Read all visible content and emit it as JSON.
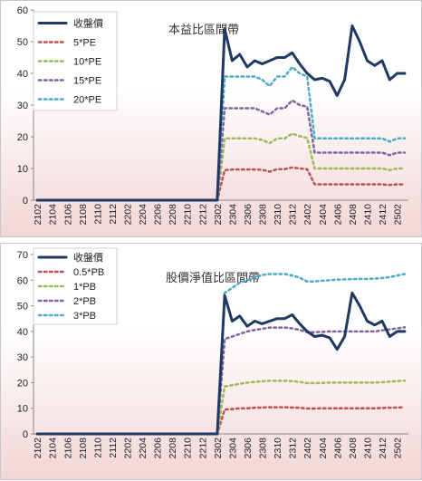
{
  "chart_data": [
    {
      "type": "line",
      "title": "本益比區間帶",
      "xlabel": "",
      "ylabel": "",
      "ylim": [
        0,
        60
      ],
      "yticks": [
        0,
        10,
        20,
        30,
        40,
        50,
        60
      ],
      "grid": false,
      "legend_position": "top-left",
      "x": [
        "2102",
        "2103",
        "2104",
        "2105",
        "2106",
        "2107",
        "2108",
        "2109",
        "2110",
        "2111",
        "2112",
        "2201",
        "2202",
        "2203",
        "2204",
        "2205",
        "2206",
        "2207",
        "2208",
        "2209",
        "2210",
        "2211",
        "2212",
        "2301",
        "2302",
        "2303",
        "2304",
        "2305",
        "2306",
        "2307",
        "2308",
        "2309",
        "2310",
        "2311",
        "2312",
        "2401",
        "2402",
        "2403",
        "2404",
        "2405",
        "2406",
        "2407",
        "2408",
        "2409",
        "2410",
        "2411",
        "2412",
        "2501",
        "2502",
        "2503"
      ],
      "xtick_labels": [
        "2102",
        "2104",
        "2106",
        "2108",
        "2110",
        "2112",
        "2202",
        "2204",
        "2206",
        "2208",
        "2210",
        "2212",
        "2302",
        "2304",
        "2306",
        "2308",
        "2310",
        "2312",
        "2402",
        "2404",
        "2406",
        "2408",
        "2410",
        "2412",
        "2502"
      ],
      "series": [
        {
          "name": "收盤價",
          "color": "#1f3864",
          "style": "solid",
          "width": 3,
          "values": [
            0,
            0,
            0,
            0,
            0,
            0,
            0,
            0,
            0,
            0,
            0,
            0,
            0,
            0,
            0,
            0,
            0,
            0,
            0,
            0,
            0,
            0,
            0,
            0,
            0,
            54,
            44,
            46,
            42,
            44,
            43,
            44,
            45,
            45,
            46.5,
            43,
            40,
            38,
            38.5,
            37.5,
            33,
            38,
            55,
            50,
            44,
            42.5,
            44,
            38,
            40,
            40
          ]
        },
        {
          "name": "5*PE",
          "color": "#c0504d",
          "style": "dot",
          "width": 2.5,
          "values": [
            0,
            0,
            0,
            0,
            0,
            0,
            0,
            0,
            0,
            0,
            0,
            0,
            0,
            0,
            0,
            0,
            0,
            0,
            0,
            0,
            0,
            0,
            0,
            0,
            0,
            9.5,
            9.7,
            9.7,
            9.7,
            9.7,
            9.6,
            9,
            9.8,
            9.8,
            10.3,
            10,
            9.8,
            5,
            5,
            5,
            5,
            5,
            5,
            5,
            5,
            5,
            5,
            4.8,
            5,
            5
          ]
        },
        {
          "name": "10*PE",
          "color": "#9bbb59",
          "style": "dot",
          "width": 2.5,
          "values": [
            0,
            0,
            0,
            0,
            0,
            0,
            0,
            0,
            0,
            0,
            0,
            0,
            0,
            0,
            0,
            0,
            0,
            0,
            0,
            0,
            0,
            0,
            0,
            0,
            0,
            19.5,
            19.5,
            19.5,
            19.5,
            19.5,
            19,
            18,
            19.5,
            19.5,
            21,
            20.2,
            19.6,
            10,
            10,
            10,
            10,
            10,
            10,
            10,
            10,
            10,
            10,
            9.5,
            10,
            10
          ]
        },
        {
          "name": "15*PE",
          "color": "#8064a2",
          "style": "dot",
          "width": 2.5,
          "values": [
            0,
            0,
            0,
            0,
            0,
            0,
            0,
            0,
            0,
            0,
            0,
            0,
            0,
            0,
            0,
            0,
            0,
            0,
            0,
            0,
            0,
            0,
            0,
            0,
            0,
            29,
            29,
            29,
            29,
            29,
            28,
            27,
            29,
            29,
            31.5,
            30,
            29.5,
            15,
            15,
            15,
            15,
            15,
            15,
            15,
            15,
            15,
            15,
            14.2,
            15,
            15
          ]
        },
        {
          "name": "20*PE",
          "color": "#4bacc6",
          "style": "dot",
          "width": 2.5,
          "values": [
            0,
            0,
            0,
            0,
            0,
            0,
            0,
            0,
            0,
            0,
            0,
            0,
            0,
            0,
            0,
            0,
            0,
            0,
            0,
            0,
            0,
            0,
            0,
            0,
            0,
            39,
            39,
            39,
            39,
            39,
            38,
            36,
            39,
            39,
            42,
            40,
            39,
            19.5,
            19.5,
            19.5,
            19.5,
            19.5,
            19.5,
            19.5,
            19.5,
            19.5,
            19.5,
            18.5,
            19.5,
            19.5
          ]
        }
      ]
    },
    {
      "type": "line",
      "title": "股價淨值比區間帶",
      "xlabel": "",
      "ylabel": "",
      "ylim": [
        0,
        70
      ],
      "yticks": [
        0,
        10,
        20,
        30,
        40,
        50,
        60,
        70
      ],
      "grid": false,
      "legend_position": "top-left",
      "x": [
        "2102",
        "2103",
        "2104",
        "2105",
        "2106",
        "2107",
        "2108",
        "2109",
        "2110",
        "2111",
        "2112",
        "2201",
        "2202",
        "2203",
        "2204",
        "2205",
        "2206",
        "2207",
        "2208",
        "2209",
        "2210",
        "2211",
        "2212",
        "2301",
        "2302",
        "2303",
        "2304",
        "2305",
        "2306",
        "2307",
        "2308",
        "2309",
        "2310",
        "2311",
        "2312",
        "2401",
        "2402",
        "2403",
        "2404",
        "2405",
        "2406",
        "2407",
        "2408",
        "2409",
        "2410",
        "2411",
        "2412",
        "2501",
        "2502",
        "2503"
      ],
      "xtick_labels": [
        "2102",
        "2104",
        "2106",
        "2108",
        "2110",
        "2112",
        "2202",
        "2204",
        "2206",
        "2208",
        "2210",
        "2212",
        "2302",
        "2304",
        "2306",
        "2308",
        "2310",
        "2312",
        "2402",
        "2404",
        "2406",
        "2408",
        "2410",
        "2412",
        "2502"
      ],
      "series": [
        {
          "name": "收盤價",
          "color": "#1f3864",
          "style": "solid",
          "width": 3,
          "values": [
            0,
            0,
            0,
            0,
            0,
            0,
            0,
            0,
            0,
            0,
            0,
            0,
            0,
            0,
            0,
            0,
            0,
            0,
            0,
            0,
            0,
            0,
            0,
            0,
            0,
            54,
            44,
            46,
            42,
            44,
            43,
            44,
            45,
            45,
            46.5,
            43,
            40,
            38,
            38.5,
            37.5,
            33,
            38,
            55,
            50,
            44,
            42.5,
            44,
            38,
            40,
            40
          ]
        },
        {
          "name": "0.5*PB",
          "color": "#c0504d",
          "style": "dot",
          "width": 2.5,
          "values": [
            0,
            0,
            0,
            0,
            0,
            0,
            0,
            0,
            0,
            0,
            0,
            0,
            0,
            0,
            0,
            0,
            0,
            0,
            0,
            0,
            0,
            0,
            0,
            0,
            0,
            9.5,
            9.7,
            10,
            10,
            10.2,
            10.3,
            10.4,
            10.4,
            10.4,
            10.3,
            10.2,
            9.9,
            9.9,
            10,
            10,
            10,
            10,
            10,
            10,
            10,
            10,
            10.1,
            10.2,
            10.3,
            10.4
          ]
        },
        {
          "name": "1*PB",
          "color": "#9bbb59",
          "style": "dot",
          "width": 2.5,
          "values": [
            0,
            0,
            0,
            0,
            0,
            0,
            0,
            0,
            0,
            0,
            0,
            0,
            0,
            0,
            0,
            0,
            0,
            0,
            0,
            0,
            0,
            0,
            0,
            0,
            0,
            18.5,
            19,
            19.5,
            20,
            20.3,
            20.5,
            20.7,
            20.7,
            20.7,
            20.6,
            20.3,
            19.8,
            19.8,
            19.9,
            20,
            20,
            20,
            20,
            20,
            20,
            20,
            20.2,
            20.4,
            20.6,
            20.8
          ]
        },
        {
          "name": "2*PB",
          "color": "#8064a2",
          "style": "dot",
          "width": 2.5,
          "values": [
            0,
            0,
            0,
            0,
            0,
            0,
            0,
            0,
            0,
            0,
            0,
            0,
            0,
            0,
            0,
            0,
            0,
            0,
            0,
            0,
            0,
            0,
            0,
            0,
            0,
            37,
            38,
            39,
            40,
            40.6,
            41,
            41.5,
            41.5,
            41.5,
            41.2,
            40.6,
            39.7,
            39.7,
            39.8,
            40,
            40,
            40,
            40,
            40,
            40,
            40,
            40.4,
            40.8,
            41.2,
            41.6
          ]
        },
        {
          "name": "3*PB",
          "color": "#4bacc6",
          "style": "dot",
          "width": 2.5,
          "values": [
            0,
            0,
            0,
            0,
            0,
            0,
            0,
            0,
            0,
            0,
            0,
            0,
            0,
            0,
            0,
            0,
            0,
            0,
            0,
            0,
            0,
            0,
            0,
            0,
            0,
            55,
            57,
            59,
            60,
            61,
            62,
            62.4,
            62.4,
            62.4,
            61.8,
            61,
            59.5,
            59.5,
            59.8,
            60,
            60.2,
            60.3,
            60.4,
            60.5,
            60.5,
            60.6,
            60.8,
            61.2,
            61.8,
            62.4
          ]
        }
      ]
    }
  ]
}
